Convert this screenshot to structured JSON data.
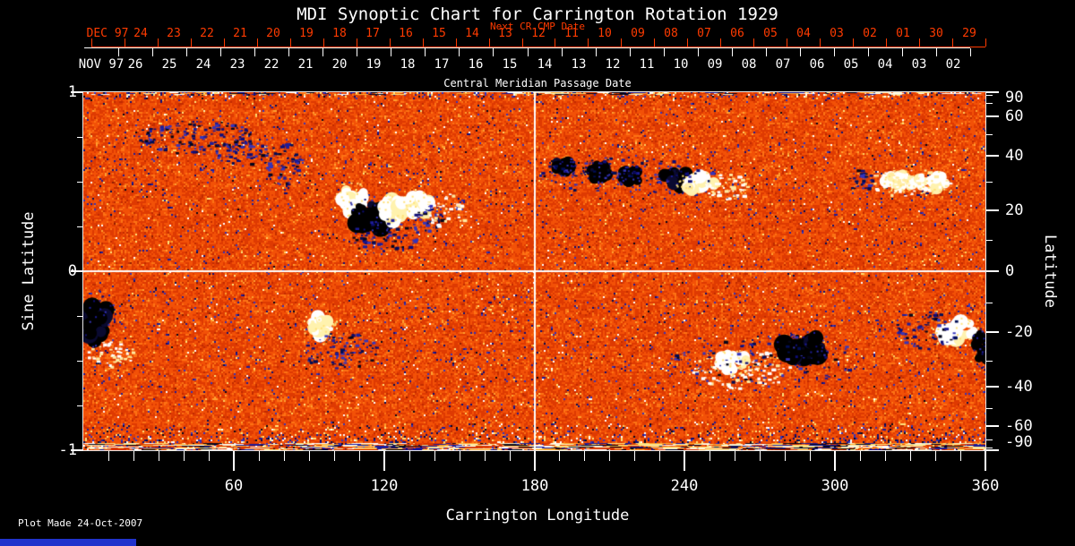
{
  "title": "MDI Synoptic Chart for Carrington Rotation 1929",
  "top_axis": {
    "label": "Next CR CMP Date",
    "color": "#ff3b00",
    "month_label": "DEC 97",
    "days": [
      "24",
      "23",
      "22",
      "21",
      "20",
      "19",
      "18",
      "17",
      "16",
      "15",
      "14",
      "13",
      "12",
      "11",
      "10",
      "09",
      "08",
      "07",
      "06",
      "05",
      "04",
      "03",
      "02",
      "01",
      "30",
      "29"
    ]
  },
  "cmp_axis": {
    "label": "Central Meridian Passage Date",
    "color": "#ffffff",
    "month_label": "NOV 97",
    "days": [
      "26",
      "25",
      "24",
      "23",
      "22",
      "21",
      "20",
      "19",
      "18",
      "17",
      "16",
      "15",
      "14",
      "13",
      "12",
      "11",
      "10",
      "09",
      "08",
      "07",
      "06",
      "05",
      "04",
      "03",
      "02"
    ]
  },
  "x_axis": {
    "label": "Carrington Longitude",
    "tick_labels": [
      "60",
      "120",
      "180",
      "240",
      "300",
      "360"
    ]
  },
  "left_axis": {
    "label": "Sine Latitude",
    "tick_labels": [
      "1",
      "0",
      "-1"
    ]
  },
  "right_axis": {
    "label": "Latitude",
    "tick_labels": [
      "90",
      "60",
      "40",
      "20",
      "0",
      "-20",
      "-40",
      "-60",
      "-90"
    ]
  },
  "footer": {
    "plot_made": "Plot Made 24-Oct-2007"
  },
  "chart_data": {
    "type": "heatmap",
    "title": "MDI Synoptic Chart for Carrington Rotation 1929",
    "xlabel": "Carrington Longitude",
    "x_range": [
      0,
      360
    ],
    "x_major_tick_step": 60,
    "x_minor_tick_step": 10,
    "ylabel_left": "Sine Latitude",
    "y_sine_range": [
      -1,
      1
    ],
    "y_sine_major_ticks": [
      1,
      0,
      -1
    ],
    "y_sine_minor_ticks": [
      0.75,
      0.5,
      0.25,
      -0.25,
      -0.5,
      -0.75
    ],
    "ylabel_right": "Latitude",
    "right_major_tick_degrees": [
      90,
      60,
      40,
      20,
      0,
      -20,
      -40,
      -60,
      -90
    ],
    "right_minor_tick_degrees": [
      80,
      70,
      50,
      30,
      10,
      -10,
      -30,
      -50,
      -70,
      -80
    ],
    "grid_lines": {
      "vertical_at_longitude": 180,
      "horizontal_at_latitude": 0,
      "color": "#ffffff"
    },
    "top_axis_intervals": 27,
    "cmp_axis_intervals": 26,
    "palette": {
      "background_ramp": [
        "#8f1e00",
        "#c12b00",
        "#de3a02",
        "#f25107",
        "#fd7314",
        "#ffa030",
        "#ffce5e",
        "#fff2ae"
      ],
      "negative_field": [
        "#05051a",
        "#000d55",
        "#0d0d78",
        "#1d1d9b",
        "#3434bb"
      ],
      "positive_field": [
        "#ffffff",
        "#fff2ae",
        "#ffe27a"
      ]
    },
    "active_regions": [
      {
        "kind": "dark-speckle",
        "x": 0.121,
        "y": 0.122,
        "rx": 0.065,
        "ry": 0.05,
        "d": 140
      },
      {
        "kind": "dark-speckle",
        "x": 0.175,
        "y": 0.165,
        "rx": 0.03,
        "ry": 0.04,
        "d": 55
      },
      {
        "kind": "dark-speckle",
        "x": 0.222,
        "y": 0.2,
        "rx": 0.022,
        "ry": 0.06,
        "d": 60
      },
      {
        "kind": "white-blob",
        "x": 0.3,
        "y": 0.3,
        "rx": 0.016,
        "ry": 0.045
      },
      {
        "kind": "dark-blob",
        "x": 0.318,
        "y": 0.345,
        "rx": 0.024,
        "ry": 0.05
      },
      {
        "kind": "white-blob",
        "x": 0.345,
        "y": 0.33,
        "rx": 0.014,
        "ry": 0.042
      },
      {
        "kind": "dark-speckle",
        "x": 0.33,
        "y": 0.4,
        "rx": 0.04,
        "ry": 0.05,
        "d": 70
      },
      {
        "kind": "white-blob",
        "x": 0.372,
        "y": 0.315,
        "rx": 0.016,
        "ry": 0.03
      },
      {
        "kind": "dark-speckle",
        "x": 0.378,
        "y": 0.35,
        "rx": 0.02,
        "ry": 0.04,
        "d": 40
      },
      {
        "kind": "white-speckle",
        "x": 0.4,
        "y": 0.33,
        "rx": 0.025,
        "ry": 0.05,
        "d": 40
      },
      {
        "kind": "dark-blob",
        "x": 0.533,
        "y": 0.208,
        "rx": 0.013,
        "ry": 0.025
      },
      {
        "kind": "dark-blob",
        "x": 0.571,
        "y": 0.222,
        "rx": 0.014,
        "ry": 0.026
      },
      {
        "kind": "dark-blob",
        "x": 0.607,
        "y": 0.233,
        "rx": 0.013,
        "ry": 0.026
      },
      {
        "kind": "dark-blob",
        "x": 0.657,
        "y": 0.242,
        "rx": 0.017,
        "ry": 0.032
      },
      {
        "kind": "white-blob",
        "x": 0.683,
        "y": 0.255,
        "rx": 0.02,
        "ry": 0.03
      },
      {
        "kind": "white-speckle",
        "x": 0.713,
        "y": 0.262,
        "rx": 0.025,
        "ry": 0.035,
        "d": 50
      },
      {
        "kind": "dark-speckle",
        "x": 0.6,
        "y": 0.23,
        "rx": 0.1,
        "ry": 0.05,
        "d": 80
      },
      {
        "kind": "dark-speckle",
        "x": 0.86,
        "y": 0.245,
        "rx": 0.015,
        "ry": 0.03,
        "d": 35
      },
      {
        "kind": "white-blob",
        "x": 0.905,
        "y": 0.25,
        "rx": 0.02,
        "ry": 0.026
      },
      {
        "kind": "white-blob",
        "x": 0.94,
        "y": 0.252,
        "rx": 0.022,
        "ry": 0.028
      },
      {
        "kind": "white-speckle",
        "x": 0.92,
        "y": 0.25,
        "rx": 0.05,
        "ry": 0.04,
        "d": 70
      },
      {
        "kind": "dark-blob",
        "x": 0.015,
        "y": 0.64,
        "rx": 0.016,
        "ry": 0.07
      },
      {
        "kind": "white-speckle",
        "x": 0.03,
        "y": 0.73,
        "rx": 0.028,
        "ry": 0.035,
        "d": 45
      },
      {
        "kind": "white-blob",
        "x": 0.262,
        "y": 0.657,
        "rx": 0.016,
        "ry": 0.038
      },
      {
        "kind": "dark-speckle",
        "x": 0.285,
        "y": 0.72,
        "rx": 0.045,
        "ry": 0.05,
        "d": 80
      },
      {
        "kind": "white-speckle",
        "x": 0.729,
        "y": 0.77,
        "rx": 0.055,
        "ry": 0.055,
        "d": 110
      },
      {
        "kind": "white-blob",
        "x": 0.72,
        "y": 0.755,
        "rx": 0.02,
        "ry": 0.03
      },
      {
        "kind": "dark-blob",
        "x": 0.798,
        "y": 0.715,
        "rx": 0.03,
        "ry": 0.045
      },
      {
        "kind": "dark-speckle",
        "x": 0.75,
        "y": 0.745,
        "rx": 0.11,
        "ry": 0.075,
        "d": 90
      },
      {
        "kind": "white-blob",
        "x": 0.97,
        "y": 0.67,
        "rx": 0.026,
        "ry": 0.04
      },
      {
        "kind": "dark-blob",
        "x": 0.998,
        "y": 0.71,
        "rx": 0.012,
        "ry": 0.05
      },
      {
        "kind": "dark-speckle",
        "x": 0.935,
        "y": 0.66,
        "rx": 0.035,
        "ry": 0.055,
        "d": 60
      }
    ]
  }
}
